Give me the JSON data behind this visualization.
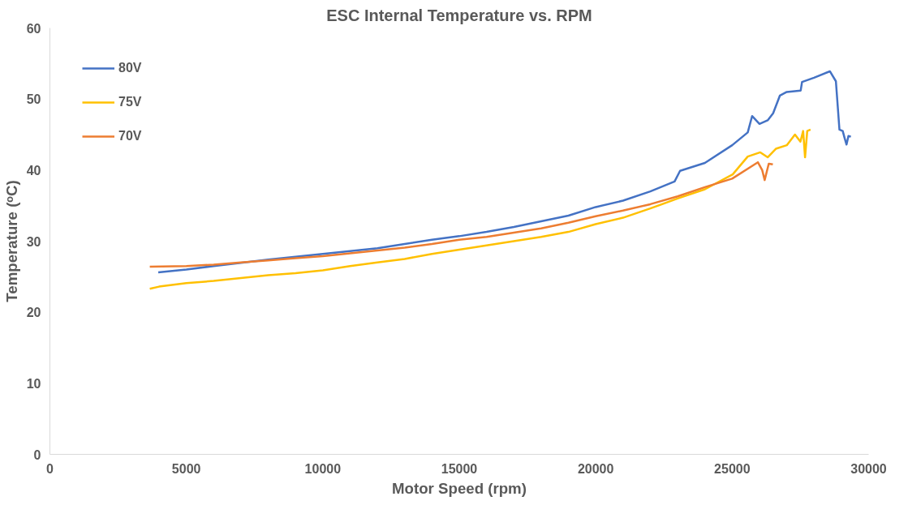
{
  "chart_data": {
    "type": "line",
    "title": "ESC Internal Temperature vs. RPM",
    "xlabel": "Motor Speed (rpm)",
    "ylabel": "Temperature (ᵒC)",
    "xlim": [
      0,
      30000
    ],
    "ylim": [
      0,
      60
    ],
    "xticks": [
      0,
      5000,
      10000,
      15000,
      20000,
      25000,
      30000
    ],
    "yticks": [
      0,
      10,
      20,
      30,
      40,
      50,
      60
    ],
    "grid": false,
    "legend": "top left",
    "marker": "none",
    "line_style": "solid",
    "series": [
      {
        "name": "80V",
        "color": "#4472c4",
        "x": [
          3970,
          5000,
          6000,
          8000,
          9000,
          10000,
          11000,
          12000,
          13000,
          14000,
          15000,
          16000,
          17000,
          18000,
          19000,
          20000,
          21000,
          22000,
          22890,
          23090,
          24000,
          25000,
          25570,
          25730,
          26000,
          26300,
          26500,
          26750,
          27000,
          27510,
          27560,
          28000,
          28580,
          28800,
          28930,
          29050,
          29120,
          29190,
          29260,
          29350
        ],
        "values": [
          25.6,
          26.0,
          26.5,
          27.4,
          27.8,
          28.2,
          28.6,
          29.0,
          29.6,
          30.2,
          30.7,
          31.3,
          32.0,
          32.8,
          33.6,
          34.8,
          35.7,
          37.0,
          38.4,
          39.9,
          41.0,
          43.5,
          45.3,
          47.6,
          46.5,
          47.0,
          48.0,
          50.5,
          51.0,
          51.2,
          52.4,
          53.0,
          53.9,
          52.5,
          45.7,
          45.5,
          44.5,
          43.6,
          44.8,
          44.7
        ]
      },
      {
        "name": "75V",
        "color": "#ffc000",
        "x": [
          3660,
          4000,
          5000,
          6000,
          7000,
          8000,
          9000,
          10000,
          11000,
          12000,
          13000,
          14000,
          15000,
          16000,
          17000,
          18000,
          19000,
          20000,
          21000,
          22000,
          23000,
          24000,
          25020,
          25570,
          26030,
          26300,
          26600,
          27000,
          27300,
          27500,
          27600,
          27670,
          27750,
          27870
        ],
        "values": [
          23.3,
          23.6,
          24.1,
          24.4,
          24.8,
          25.2,
          25.5,
          25.9,
          26.5,
          27.0,
          27.5,
          28.2,
          28.8,
          29.4,
          30.0,
          30.6,
          31.3,
          32.4,
          33.3,
          34.6,
          36.0,
          37.3,
          39.4,
          41.9,
          42.5,
          41.8,
          43.0,
          43.5,
          45.0,
          44.0,
          45.5,
          41.8,
          45.5,
          45.7
        ]
      },
      {
        "name": "70V",
        "color": "#ed7d31",
        "x": [
          3660,
          5000,
          6000,
          7000,
          8000,
          9000,
          10000,
          11000,
          12000,
          13000,
          14000,
          15000,
          16000,
          17000,
          18000,
          19000,
          20000,
          21000,
          22000,
          23000,
          24000,
          25000,
          25940,
          26100,
          26190,
          26340,
          26490
        ],
        "values": [
          26.4,
          26.5,
          26.7,
          27.0,
          27.3,
          27.6,
          27.9,
          28.3,
          28.7,
          29.1,
          29.6,
          30.2,
          30.6,
          31.2,
          31.8,
          32.6,
          33.5,
          34.3,
          35.2,
          36.3,
          37.6,
          38.8,
          41.1,
          40.0,
          38.6,
          40.9,
          40.8
        ]
      }
    ]
  }
}
